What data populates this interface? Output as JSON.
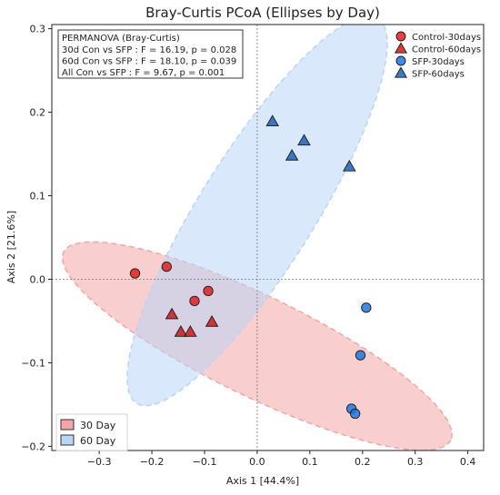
{
  "chart_data": {
    "type": "scatter",
    "title": "Bray-Curtis PCoA (Ellipses by Day)",
    "xlabel": "Axis 1 [44.4%]",
    "ylabel": "Axis 2 [21.6%]",
    "xlim": [
      -0.39,
      0.43
    ],
    "ylim": [
      -0.205,
      0.305
    ],
    "xticks": [
      -0.3,
      -0.2,
      -0.1,
      0.0,
      0.1,
      0.2,
      0.3,
      0.4
    ],
    "xtick_labels": [
      "−0.3",
      "−0.2",
      "−0.1",
      "0.0",
      "0.1",
      "0.2",
      "0.3",
      "0.4"
    ],
    "yticks": [
      -0.2,
      -0.1,
      0.0,
      0.1,
      0.2,
      0.3
    ],
    "ytick_labels": [
      "−0.2",
      "−0.1",
      "0.0",
      "0.1",
      "0.2",
      "0.3"
    ],
    "grid": false,
    "reference_lines": {
      "x": 0.0,
      "y": 0.0,
      "style": "dotted"
    },
    "permanova": {
      "title": "PERMANOVA (Bray-Curtis)",
      "lines": [
        "30d Con vs SFP : F = 16.19, p = 0.028",
        "60d Con vs SFP : F = 18.10, p = 0.039",
        "All Con vs SFP : F = 9.67, p = 0.001"
      ]
    },
    "series": [
      {
        "name": "Control-30days",
        "marker": "circle",
        "color": "#e02020",
        "points": [
          [
            -0.232,
            0.007
          ],
          [
            -0.172,
            0.015
          ],
          [
            -0.119,
            -0.026
          ],
          [
            -0.093,
            -0.014
          ]
        ]
      },
      {
        "name": "Control-60days",
        "marker": "triangle",
        "color": "#cc1a1a",
        "points": [
          [
            -0.162,
            -0.042
          ],
          [
            -0.145,
            -0.063
          ],
          [
            -0.127,
            -0.063
          ],
          [
            -0.086,
            -0.051
          ]
        ]
      },
      {
        "name": "SFP-30days",
        "marker": "circle",
        "color": "#1f77e0",
        "points": [
          [
            0.207,
            -0.034
          ],
          [
            0.196,
            -0.091
          ],
          [
            0.179,
            -0.155
          ],
          [
            0.186,
            -0.161
          ]
        ]
      },
      {
        "name": "SFP-60days",
        "marker": "triangle",
        "color": "#1f5fb4",
        "points": [
          [
            0.029,
            0.189
          ],
          [
            0.066,
            0.148
          ],
          [
            0.089,
            0.166
          ],
          [
            0.175,
            0.135
          ]
        ]
      }
    ],
    "ellipses": [
      {
        "name": "30 Day",
        "color": "#f4a6a6",
        "center": [
          0.0,
          -0.08
        ],
        "axis_points": [
          [
            -0.365,
            0.033
          ],
          [
            0.37,
            -0.192
          ]
        ],
        "minor_point": [
          -0.038,
          -0.135
        ]
      },
      {
        "name": "60 Day",
        "color": "#b9d5f5",
        "center": [
          0.0,
          0.082
        ],
        "axis_points": [
          [
            -0.235,
            -0.176
          ],
          [
            0.223,
            0.285
          ]
        ],
        "minor_point": [
          -0.067,
          0.136
        ]
      }
    ],
    "legend": {
      "placement": "top-right",
      "entries": [
        "Control-30days",
        "Control-60days",
        "SFP-30days",
        "SFP-60days"
      ]
    },
    "ellipse_legend": {
      "placement": "bottom-left",
      "entries": [
        "30 Day",
        "60 Day"
      ]
    }
  }
}
